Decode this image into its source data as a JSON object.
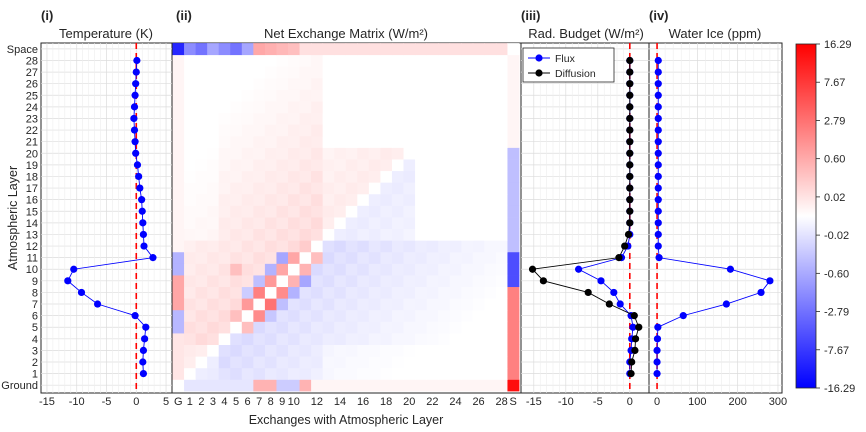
{
  "chart_data": {
    "type": "figure",
    "y_axis": {
      "label": "Atmospheric Layer",
      "tick_labels": [
        "Ground",
        "1",
        "2",
        "3",
        "4",
        "5",
        "6",
        "7",
        "8",
        "9",
        "10",
        "11",
        "12",
        "13",
        "14",
        "15",
        "16",
        "17",
        "18",
        "19",
        "20",
        "21",
        "22",
        "23",
        "24",
        "25",
        "26",
        "27",
        "28",
        "Space"
      ]
    },
    "x_axis_label": "Exchanges with Atmospheric Layer",
    "panels": [
      {
        "id": "i",
        "label": "(i)",
        "title": "Temperature (K)",
        "type": "line",
        "xlim": [
          -16,
          6
        ],
        "xticks": [
          -15,
          -10,
          -5,
          0,
          5
        ],
        "xtick_labels": [
          "-15",
          "-10",
          "-5",
          "0",
          "5"
        ],
        "reference_x": 0,
        "series": [
          {
            "name": "",
            "color": "#0000ff",
            "layers": [
              1,
              2,
              3,
              4,
              5,
              6,
              7,
              8,
              9,
              10,
              11,
              12,
              13,
              14,
              15,
              16,
              17,
              18,
              19,
              20,
              21,
              22,
              23,
              24,
              25,
              26,
              27,
              28
            ],
            "values": [
              1.2,
              1.1,
              1.2,
              1.4,
              1.6,
              -0.2,
              -6.5,
              -9.2,
              -11.5,
              -10.5,
              2.8,
              1.3,
              1.2,
              1.1,
              1.0,
              0.9,
              0.6,
              0.4,
              0.2,
              -0.1,
              -0.2,
              -0.3,
              -0.4,
              -0.3,
              -0.2,
              -0.1,
              0.0,
              0.1
            ]
          }
        ]
      },
      {
        "id": "ii",
        "label": "(ii)",
        "title": "Net Exchange Matrix (W/m²)",
        "type": "heatmap",
        "x_tick_labels": [
          "G",
          "1",
          "2",
          "3",
          "4",
          "5",
          "6",
          "7",
          "8",
          "9",
          "10",
          "12",
          "14",
          "16",
          "18",
          "20",
          "22",
          "24",
          "26",
          "28",
          "S"
        ],
        "x_tick_positions": [
          0,
          1,
          2,
          3,
          4,
          5,
          6,
          7,
          8,
          9,
          10,
          12,
          14,
          16,
          18,
          20,
          22,
          24,
          26,
          28,
          29
        ]
      },
      {
        "id": "iii",
        "label": "(iii)",
        "title": "Rad. Budget (W/m²)",
        "type": "line",
        "xlim": [
          -17,
          3
        ],
        "xticks": [
          -15,
          -10,
          -5,
          0
        ],
        "xtick_labels": [
          "-15",
          "-10",
          "-5",
          "0"
        ],
        "reference_x": 0,
        "legend": {
          "position": "top-left"
        },
        "series": [
          {
            "name": "Flux",
            "color": "#0000ff",
            "layers": [
              1,
              2,
              3,
              4,
              5,
              6,
              7,
              8,
              9,
              10,
              11,
              12,
              13,
              14,
              15,
              16,
              17,
              18,
              19,
              20,
              21,
              22,
              23,
              24,
              25,
              26,
              27,
              28
            ],
            "values": [
              0.0,
              0.0,
              0.2,
              0.3,
              0.5,
              0.2,
              -1.5,
              -2.5,
              -4.5,
              -8.0,
              -1.3,
              -0.3,
              0.0,
              0.0,
              0.0,
              0.0,
              0.0,
              0.0,
              0.0,
              0.0,
              0.0,
              0.0,
              0.0,
              0.0,
              0.0,
              0.0,
              0.0,
              0.0
            ]
          },
          {
            "name": "Diffusion",
            "color": "#000000",
            "layers": [
              1,
              2,
              3,
              4,
              5,
              6,
              7,
              8,
              9,
              10,
              11,
              12,
              13,
              14,
              15,
              16,
              17,
              18,
              19,
              20,
              21,
              22,
              23,
              24,
              25,
              26,
              27,
              28
            ],
            "values": [
              0.2,
              0.3,
              0.8,
              0.9,
              1.4,
              0.7,
              -3.2,
              -6.5,
              -13.5,
              -15.2,
              -1.7,
              -0.8,
              -0.2,
              0.0,
              0.0,
              0.0,
              0.0,
              0.0,
              0.0,
              0.0,
              0.0,
              0.0,
              0.0,
              0.0,
              0.0,
              0.0,
              0.0,
              0.0
            ]
          }
        ]
      },
      {
        "id": "iv",
        "label": "(iv)",
        "title": "Water Ice (ppm)",
        "type": "line",
        "xlim": [
          -20,
          310
        ],
        "xticks": [
          0,
          100,
          200,
          300
        ],
        "xtick_labels": [
          "0",
          "100",
          "200",
          "300"
        ],
        "reference_x": 0,
        "series": [
          {
            "name": "",
            "color": "#0000ff",
            "layers": [
              1,
              2,
              3,
              4,
              5,
              6,
              7,
              8,
              9,
              10,
              11,
              12,
              13,
              14,
              15,
              16,
              17,
              18,
              19,
              20,
              21,
              22,
              23,
              24,
              25,
              26,
              27,
              28
            ],
            "values": [
              0,
              0,
              0,
              1,
              2,
              65,
              172,
              258,
              280,
              182,
              5,
              3,
              3,
              3,
              3,
              3,
              3,
              3,
              3,
              3,
              3,
              3,
              3,
              3,
              3,
              3,
              3,
              3
            ]
          }
        ]
      }
    ],
    "colorbar": {
      "tick_labels": [
        "16.29",
        "7.67",
        "2.79",
        "0.60",
        "0.02",
        "-0.02",
        "-0.60",
        "-2.79",
        "-7.67",
        "-16.29"
      ],
      "colors": {
        "max": "#ff0000",
        "mid": "#ffffff",
        "min": "#0000ff"
      }
    }
  }
}
